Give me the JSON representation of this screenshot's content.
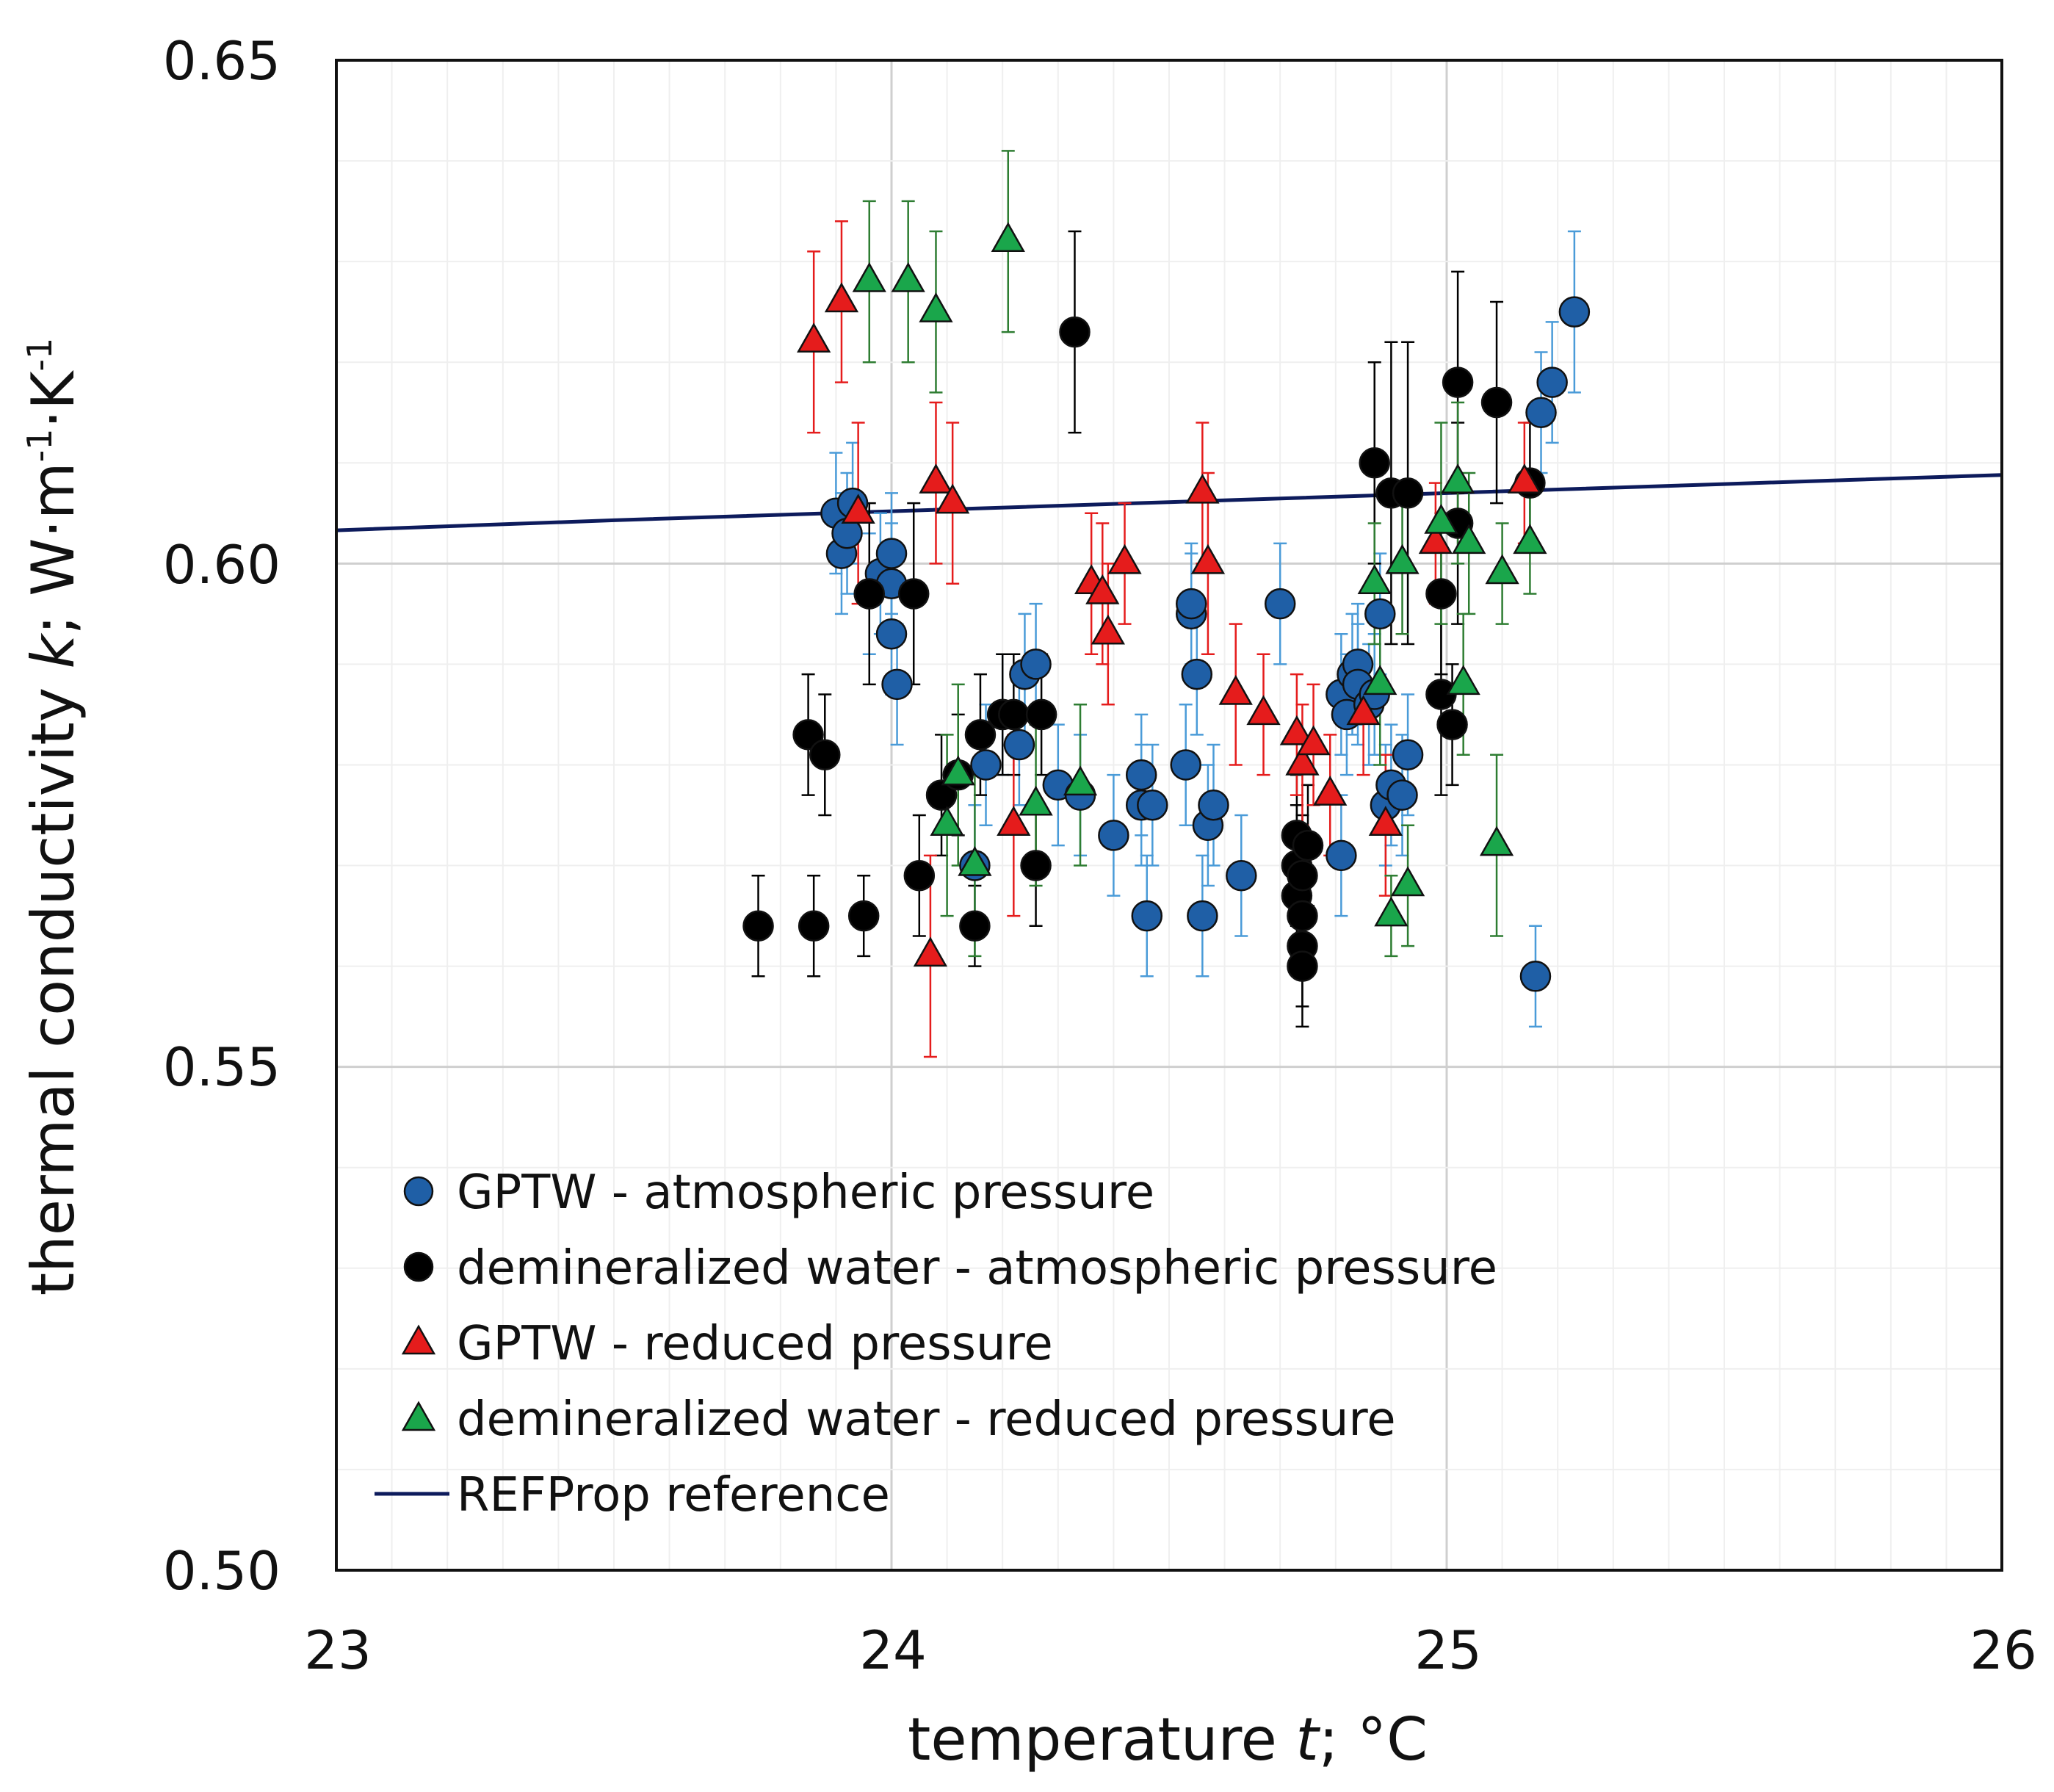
{
  "chart_data": {
    "type": "scatter",
    "title": "",
    "xlabel": "temperature t; °C",
    "xlabel_parts": {
      "pre": "temperature ",
      "var": "t",
      "post": "; °C"
    },
    "ylabel": "thermal conductivity k; W·m-1·K-1",
    "ylabel_parts": {
      "pre": "thermal conductivity ",
      "var": "k",
      "mid": "; W·m",
      "exp1": "-1",
      "dot": "·K",
      "exp2": "-1"
    },
    "xlim": [
      23,
      26
    ],
    "ylim": [
      0.5,
      0.65
    ],
    "x_ticks": [
      "23",
      "24",
      "25",
      "26"
    ],
    "y_ticks": [
      "0.50",
      "0.55",
      "0.60",
      "0.65"
    ],
    "grid": true,
    "legend_position": "lower-left",
    "colors": {
      "gptw_atm": "#1f5fa6",
      "gptw_atm_err": "#4a9bd8",
      "demin_atm": "#000000",
      "gptw_red": "#e51c1c",
      "demin_red": "#1aa64b",
      "demin_red_err": "#2e7d32",
      "refprop": "#0d1b5c",
      "grid": "#d9d9d9"
    },
    "series": [
      {
        "name": "GPTW - atmospheric pressure",
        "marker": "circle",
        "color_key": "gptw_atm",
        "points": [
          [
            23.9,
            0.605,
            0.006
          ],
          [
            23.91,
            0.601,
            0.006
          ],
          [
            23.92,
            0.603,
            0.006
          ],
          [
            23.93,
            0.606,
            0.006
          ],
          [
            23.96,
            0.597,
            0.006
          ],
          [
            23.98,
            0.599,
            0.006
          ],
          [
            24.0,
            0.601,
            0.006
          ],
          [
            24.0,
            0.598,
            0.006
          ],
          [
            24.0,
            0.593,
            0.006
          ],
          [
            24.01,
            0.588,
            0.006
          ],
          [
            24.15,
            0.57,
            0.006
          ],
          [
            24.17,
            0.58,
            0.006
          ],
          [
            24.2,
            0.585,
            0.006
          ],
          [
            24.23,
            0.582,
            0.006
          ],
          [
            24.24,
            0.589,
            0.006
          ],
          [
            24.26,
            0.59,
            0.006
          ],
          [
            24.3,
            0.578,
            0.006
          ],
          [
            24.34,
            0.577,
            0.006
          ],
          [
            24.4,
            0.573,
            0.006
          ],
          [
            24.45,
            0.576,
            0.006
          ],
          [
            24.45,
            0.579,
            0.006
          ],
          [
            24.46,
            0.565,
            0.006
          ],
          [
            24.47,
            0.576,
            0.006
          ],
          [
            24.53,
            0.58,
            0.006
          ],
          [
            24.54,
            0.595,
            0.006
          ],
          [
            24.54,
            0.596,
            0.006
          ],
          [
            24.55,
            0.589,
            0.006
          ],
          [
            24.56,
            0.565,
            0.006
          ],
          [
            24.57,
            0.574,
            0.006
          ],
          [
            24.58,
            0.576,
            0.006
          ],
          [
            24.63,
            0.569,
            0.006
          ],
          [
            24.7,
            0.596,
            0.006
          ],
          [
            24.81,
            0.571,
            0.006
          ],
          [
            24.81,
            0.587,
            0.006
          ],
          [
            24.82,
            0.585,
            0.006
          ],
          [
            24.83,
            0.589,
            0.006
          ],
          [
            24.84,
            0.59,
            0.006
          ],
          [
            24.84,
            0.588,
            0.006
          ],
          [
            24.86,
            0.586,
            0.006
          ],
          [
            24.87,
            0.587,
            0.006
          ],
          [
            24.88,
            0.595,
            0.006
          ],
          [
            24.89,
            0.576,
            0.006
          ],
          [
            24.9,
            0.578,
            0.006
          ],
          [
            24.92,
            0.577,
            0.006
          ],
          [
            24.93,
            0.581,
            0.006
          ],
          [
            25.16,
            0.559,
            0.005
          ],
          [
            25.17,
            0.615,
            0.006
          ],
          [
            25.19,
            0.618,
            0.006
          ],
          [
            25.23,
            0.625,
            0.008
          ]
        ]
      },
      {
        "name": "demineralized water - atmospheric pressure",
        "marker": "circle",
        "color_key": "demin_atm",
        "points": [
          [
            23.76,
            0.564,
            0.005
          ],
          [
            23.85,
            0.583,
            0.006
          ],
          [
            23.86,
            0.564,
            0.005
          ],
          [
            23.88,
            0.581,
            0.006
          ],
          [
            23.95,
            0.565,
            0.004
          ],
          [
            23.96,
            0.597,
            0.009
          ],
          [
            24.04,
            0.597,
            0.009
          ],
          [
            24.05,
            0.569,
            0.006
          ],
          [
            24.09,
            0.577,
            0.006
          ],
          [
            24.12,
            0.579,
            0.006
          ],
          [
            24.15,
            0.564,
            0.004
          ],
          [
            24.16,
            0.583,
            0.006
          ],
          [
            24.2,
            0.585,
            0.006
          ],
          [
            24.22,
            0.585,
            0.006
          ],
          [
            24.26,
            0.57,
            0.006
          ],
          [
            24.27,
            0.585,
            0.006
          ],
          [
            24.33,
            0.623,
            0.01
          ],
          [
            24.73,
            0.573,
            0.006
          ],
          [
            24.73,
            0.57,
            0.006
          ],
          [
            24.73,
            0.567,
            0.006
          ],
          [
            24.74,
            0.565,
            0.006
          ],
          [
            24.74,
            0.562,
            0.006
          ],
          [
            24.74,
            0.56,
            0.006
          ],
          [
            24.74,
            0.569,
            0.006
          ],
          [
            24.75,
            0.572,
            0.006
          ],
          [
            24.87,
            0.61,
            0.01
          ],
          [
            24.9,
            0.607,
            0.015
          ],
          [
            24.93,
            0.607,
            0.015
          ],
          [
            24.99,
            0.587,
            0.01
          ],
          [
            24.99,
            0.597,
            0.008
          ],
          [
            25.01,
            0.584,
            0.006
          ],
          [
            25.02,
            0.604,
            0.01
          ],
          [
            25.02,
            0.618,
            0.011
          ],
          [
            25.09,
            0.616,
            0.01
          ],
          [
            25.15,
            0.608,
            0.006
          ]
        ]
      },
      {
        "name": "GPTW - reduced pressure",
        "marker": "triangle",
        "color_key": "gptw_red",
        "points": [
          [
            23.86,
            0.622,
            0.009
          ],
          [
            23.91,
            0.626,
            0.008
          ],
          [
            23.94,
            0.605,
            0.009
          ],
          [
            24.07,
            0.561,
            0.01
          ],
          [
            24.08,
            0.608,
            0.008
          ],
          [
            24.11,
            0.606,
            0.008
          ],
          [
            24.22,
            0.574,
            0.009
          ],
          [
            24.36,
            0.598,
            0.007
          ],
          [
            24.38,
            0.597,
            0.007
          ],
          [
            24.39,
            0.593,
            0.007
          ],
          [
            24.42,
            0.6,
            0.006
          ],
          [
            24.56,
            0.607,
            0.007
          ],
          [
            24.57,
            0.6,
            0.009
          ],
          [
            24.62,
            0.587,
            0.007
          ],
          [
            24.67,
            0.585,
            0.006
          ],
          [
            24.73,
            0.583,
            0.006
          ],
          [
            24.74,
            0.58,
            0.006
          ],
          [
            24.76,
            0.582,
            0.006
          ],
          [
            24.79,
            0.577,
            0.006
          ],
          [
            24.85,
            0.585,
            0.006
          ],
          [
            24.89,
            0.574,
            0.007
          ],
          [
            24.98,
            0.602,
            0.006
          ],
          [
            25.14,
            0.608,
            0.006
          ]
        ]
      },
      {
        "name": "demineralized water - reduced pressure",
        "marker": "triangle",
        "color_key": "demin_red",
        "points": [
          [
            23.96,
            0.628,
            0.008
          ],
          [
            24.03,
            0.628,
            0.008
          ],
          [
            24.08,
            0.625,
            0.008
          ],
          [
            24.1,
            0.574,
            0.009
          ],
          [
            24.12,
            0.579,
            0.009
          ],
          [
            24.15,
            0.57,
            0.009
          ],
          [
            24.21,
            0.632,
            0.009
          ],
          [
            24.26,
            0.576,
            0.008
          ],
          [
            24.34,
            0.578,
            0.008
          ],
          [
            24.87,
            0.598,
            0.006
          ],
          [
            24.88,
            0.588,
            0.008
          ],
          [
            24.9,
            0.565,
            0.004
          ],
          [
            24.92,
            0.6,
            0.007
          ],
          [
            24.93,
            0.568,
            0.006
          ],
          [
            24.99,
            0.604,
            0.01
          ],
          [
            25.02,
            0.608,
            0.008
          ],
          [
            25.03,
            0.588,
            0.007
          ],
          [
            25.04,
            0.602,
            0.007
          ],
          [
            25.09,
            0.572,
            0.009
          ],
          [
            25.1,
            0.599,
            0.005
          ],
          [
            25.15,
            0.602,
            0.005
          ]
        ]
      }
    ],
    "reference": {
      "name": "REFProp reference",
      "color_key": "refprop",
      "points": [
        [
          23.0,
          0.6033
        ],
        [
          23.5,
          0.6043
        ],
        [
          24.0,
          0.6052
        ],
        [
          24.5,
          0.6061
        ],
        [
          25.0,
          0.607
        ],
        [
          25.5,
          0.6079
        ],
        [
          26.0,
          0.6088
        ]
      ]
    }
  }
}
